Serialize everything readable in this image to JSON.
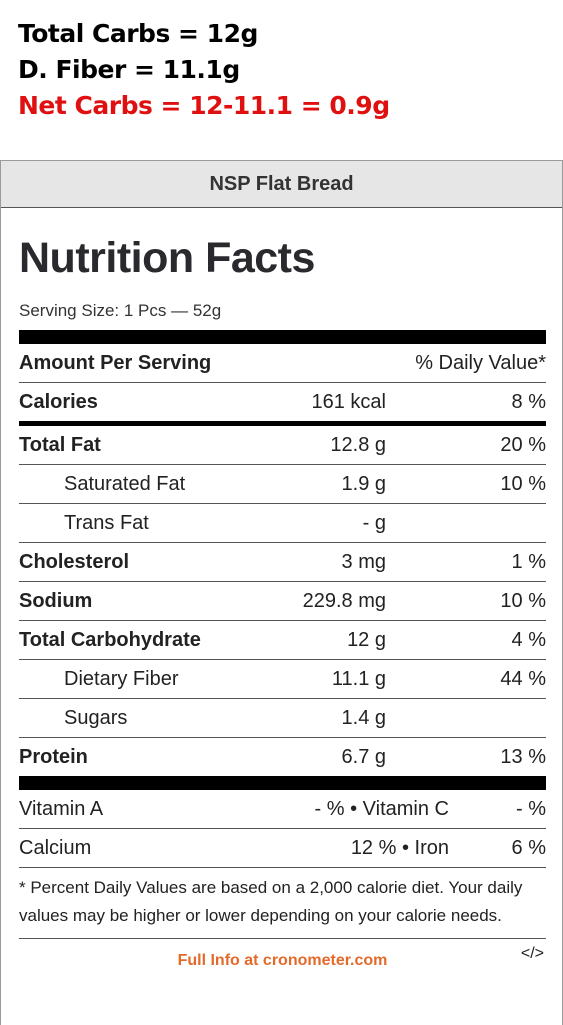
{
  "annotation": {
    "line1": "Total Carbs = 12g",
    "line2": "D. Fiber = 11.1g",
    "line3": "Net Carbs = 12-11.1 = 0.9g"
  },
  "panel_title": "NSP Flat Bread",
  "label": {
    "title": "Nutrition Facts",
    "serving_size": "Serving Size: 1 Pcs — 52g",
    "header_left": "Amount Per Serving",
    "header_right": "% Daily Value*",
    "rows": [
      {
        "name": "Calories",
        "amount": "161 kcal",
        "dv": "8 %"
      },
      {
        "name": "Total Fat",
        "amount": "12.8 g",
        "dv": "20 %"
      },
      {
        "name": "Saturated Fat",
        "amount": "1.9 g",
        "dv": "10 %"
      },
      {
        "name": "Trans Fat",
        "amount": "- g",
        "dv": ""
      },
      {
        "name": "Cholesterol",
        "amount": "3 mg",
        "dv": "1 %"
      },
      {
        "name": "Sodium",
        "amount": "229.8 mg",
        "dv": "10 %"
      },
      {
        "name": "Total Carbohydrate",
        "amount": "12 g",
        "dv": "4 %"
      },
      {
        "name": "Dietary Fiber",
        "amount": "11.1 g",
        "dv": "44 %"
      },
      {
        "name": "Sugars",
        "amount": "1.4 g",
        "dv": ""
      },
      {
        "name": "Protein",
        "amount": "6.7 g",
        "dv": "13 %"
      }
    ],
    "vitamins": [
      {
        "name1": "Vitamin A",
        "val1": "- %",
        "name2": "Vitamin C",
        "val2": "- %"
      },
      {
        "name1": "Calcium",
        "val1": "12 %",
        "name2": "Iron",
        "val2": "6 %"
      }
    ],
    "bullet": " • ",
    "footnote": "* Percent Daily Values are based on a 2,000 calorie diet. Your daily values may be higher or lower depending on your calorie needs.",
    "footer_link": "Full Info at cronometer.com",
    "embed": "</>"
  }
}
